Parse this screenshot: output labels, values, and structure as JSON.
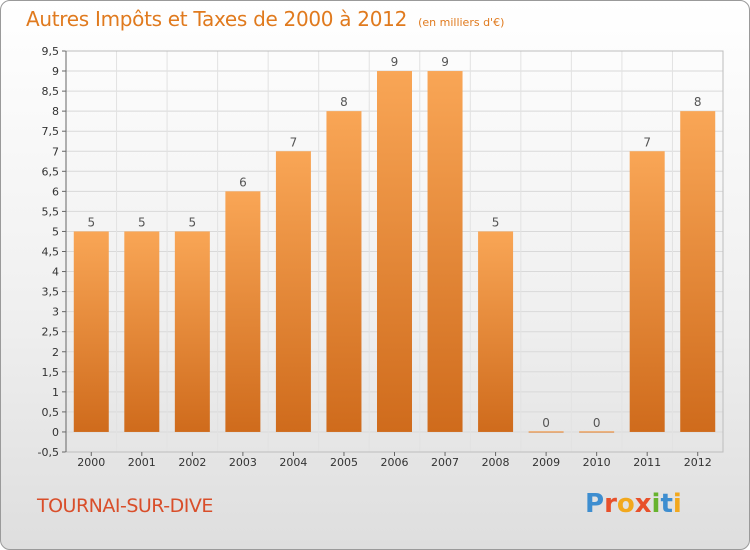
{
  "title": "Autres Impôts et Taxes de 2000 à 2012",
  "subtitle": "(en milliers d'€)",
  "place": "TOURNAI-SUR-DIVE",
  "logo": "Proxiti",
  "colors": {
    "bar_light": "#f9a656",
    "bar_dark": "#cf6b1c",
    "title": "#e07a1e",
    "place": "#d94e2a",
    "logo": [
      "#3e8ed0",
      "#e8502a",
      "#f2a81d",
      "#e8502a",
      "#67b32e",
      "#3e8ed0",
      "#f2a81d"
    ]
  },
  "chart_data": {
    "type": "bar",
    "categories": [
      "2000",
      "2001",
      "2002",
      "2003",
      "2004",
      "2005",
      "2006",
      "2007",
      "2008",
      "2009",
      "2010",
      "2011",
      "2012"
    ],
    "values": [
      5,
      5,
      5,
      6,
      7,
      8,
      9,
      9,
      5,
      0,
      0,
      7,
      8
    ],
    "data_labels": [
      "5",
      "5",
      "5",
      "6",
      "7",
      "8",
      "9",
      "9",
      "5",
      "0",
      "0",
      "7",
      "8"
    ],
    "y_ticks": [
      "-0,5",
      "0",
      "0,5",
      "1",
      "1,5",
      "2",
      "2,5",
      "3",
      "3,5",
      "4",
      "4,5",
      "5",
      "5,5",
      "6",
      "6,5",
      "7",
      "7,5",
      "8",
      "8,5",
      "9",
      "9,5"
    ],
    "ylim": [
      -0.5,
      9.5
    ],
    "grid": true,
    "title": "Autres Impôts et Taxes de 2000 à 2012",
    "xlabel": "",
    "ylabel": ""
  }
}
